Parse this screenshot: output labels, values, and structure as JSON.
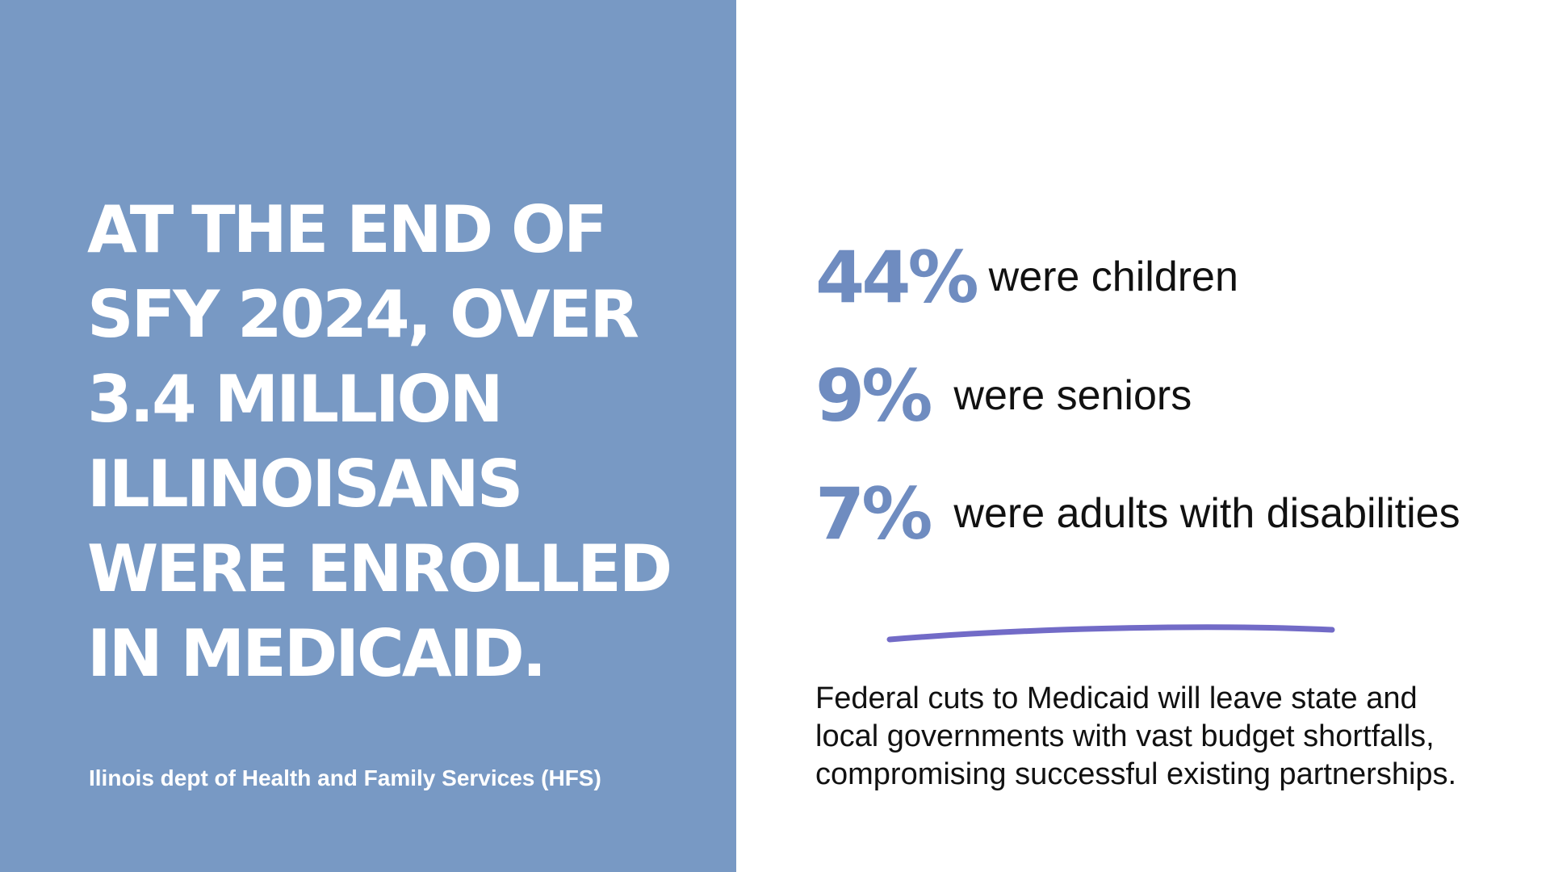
{
  "headline": "AT THE END OF\nSFY 2024, OVER\n3.4 MILLION\nILLINOISANS\nWERE ENROLLED\nIN MEDICAID.",
  "source": "Ilinois dept of Health and Family Services (HFS)",
  "stats": [
    {
      "value": "44%",
      "label": "were children"
    },
    {
      "value": "9%",
      "label": "were seniors"
    },
    {
      "value": "7%",
      "label": "were adults with disabilities"
    }
  ],
  "footnote": "Federal cuts to Medicaid will leave state and\nlocal governments with vast budget shortfalls,\ncompromising successful existing partnerships.",
  "colors": {
    "panel": "#7899c4",
    "stat_accent": "#6f8cc0",
    "divider": "#6a63c4"
  }
}
